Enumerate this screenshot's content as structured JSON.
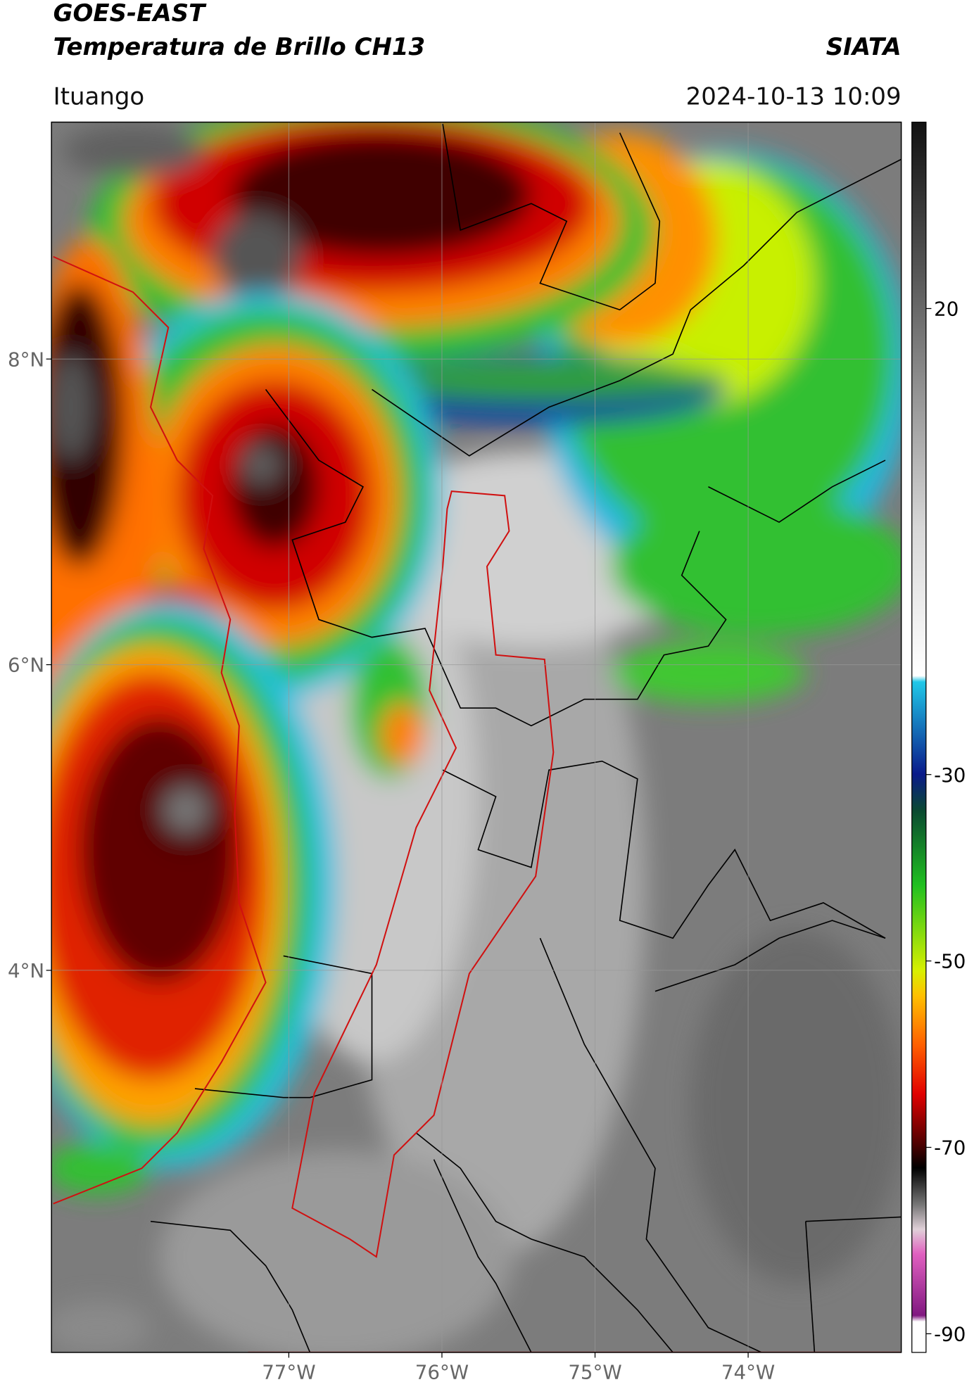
{
  "chart_data": {
    "type": "map",
    "title": "GOES-EAST",
    "subtitle": "Temperatura de Brillo CH13",
    "source": "SIATA",
    "location": "Ituango",
    "date": "2024-10-13 10:09",
    "xlim": [
      -78.55,
      -73.0
    ],
    "ylim": [
      1.5,
      9.55
    ],
    "xticks": [
      {
        "value": -77,
        "label": "77°W"
      },
      {
        "value": -76,
        "label": "76°W"
      },
      {
        "value": -75,
        "label": "75°W"
      },
      {
        "value": -74,
        "label": "74°W"
      }
    ],
    "yticks": [
      {
        "value": 8,
        "label": "8°N"
      },
      {
        "value": 6,
        "label": "6°N"
      },
      {
        "value": 4,
        "label": "4°N"
      }
    ],
    "colorbar_lim": [
      -92,
      40
    ],
    "colorbar_ticks": [
      20,
      -30,
      -50,
      -70,
      -90
    ],
    "grid": true
  }
}
